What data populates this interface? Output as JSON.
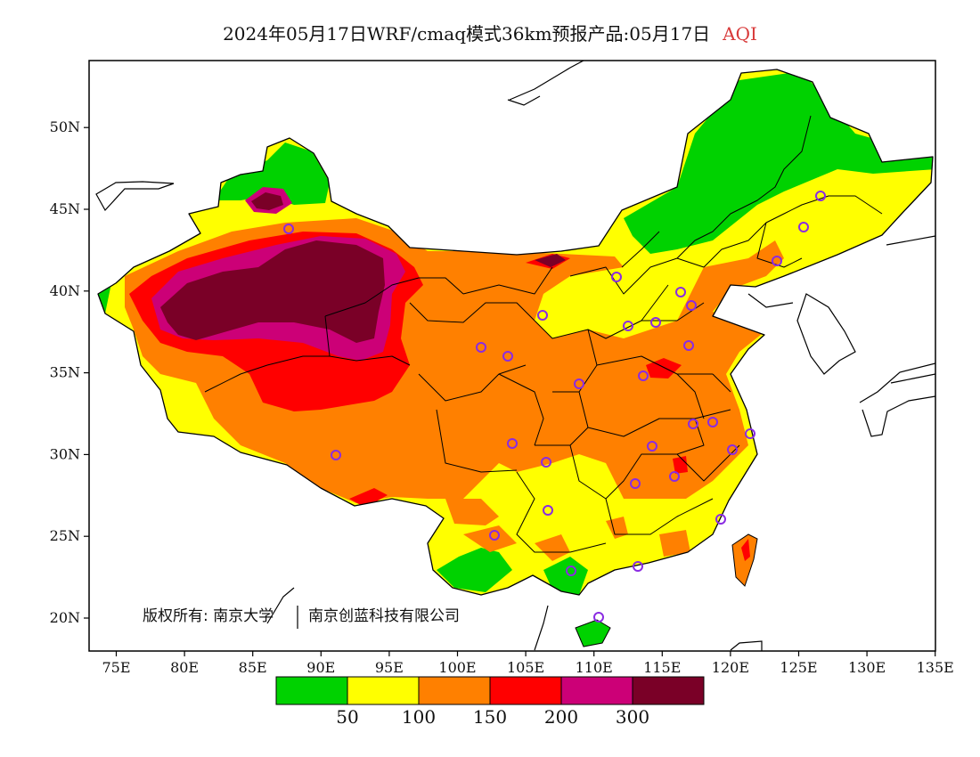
{
  "title": {
    "main": "2024年05月17日WRF/cmaq模式36km预报产品:05月17日",
    "variable": "AQI"
  },
  "axes": {
    "lon_ticks": [
      "75E",
      "80E",
      "85E",
      "90E",
      "95E",
      "100E",
      "105E",
      "110E",
      "115E",
      "120E",
      "125E",
      "130E",
      "135E"
    ],
    "lat_ticks": [
      "20N",
      "25N",
      "30N",
      "35N",
      "40N",
      "45N",
      "50N"
    ]
  },
  "colorbar": {
    "colors": [
      "#00d200",
      "#ffff00",
      "#ff8000",
      "#ff0000",
      "#cc0077",
      "#7a0027"
    ],
    "labels": [
      "50",
      "100",
      "150",
      "200",
      "300"
    ]
  },
  "copyright": {
    "text1": "版权所有: 南京大学",
    "text2": "南京创蓝科技有限公司"
  },
  "map_colors": {
    "good": "#00d200",
    "moderate": "#ffff00",
    "usg": "#ff8000",
    "unhealthy": "#ff0000",
    "very_unhealthy": "#cc0077",
    "hazardous": "#7a0027",
    "station_marker": "#8a2be2"
  }
}
